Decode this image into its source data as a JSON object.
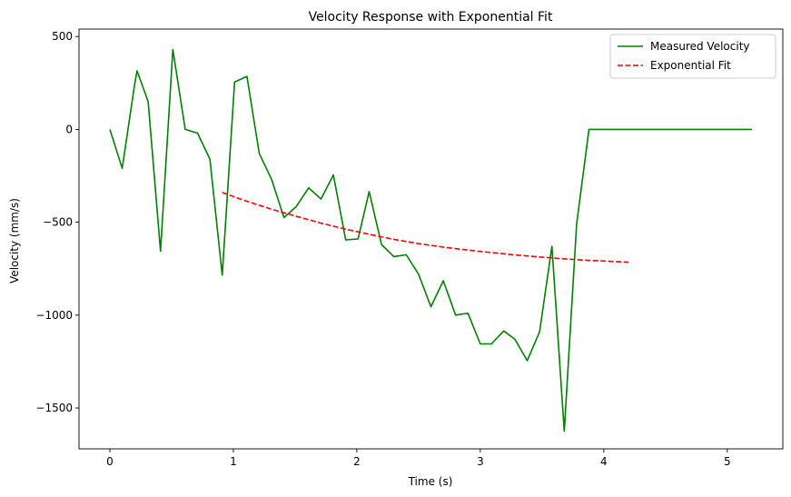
{
  "chart_data": {
    "type": "line",
    "title": "Velocity Response with Exponential Fit",
    "xlabel": "Time (s)",
    "ylabel": "Velocity (mm/s)",
    "xlim": [
      -0.25,
      5.45
    ],
    "ylim": [
      -1720,
      540
    ],
    "xticks": [
      0,
      1,
      2,
      3,
      4,
      5
    ],
    "yticks": [
      500,
      0,
      -500,
      -1000,
      -1500
    ],
    "xtick_labels": [
      "0",
      "1",
      "2",
      "3",
      "4",
      "5"
    ],
    "ytick_labels": [
      "500",
      "0",
      "−500",
      "−1000",
      "−1500"
    ],
    "grid": false,
    "legend_position": "top-right",
    "series": [
      {
        "name": "Measured Velocity",
        "color": "#008000",
        "style": "solid",
        "x": [
          0,
          0.1,
          0.2,
          0.22,
          0.31,
          0.41,
          0.51,
          0.61,
          0.71,
          0.81,
          0.91,
          1.01,
          1.11,
          1.21,
          1.31,
          1.41,
          1.51,
          1.61,
          1.71,
          1.81,
          1.91,
          2.01,
          2.1,
          2.2,
          2.3,
          2.4,
          2.5,
          2.6,
          2.7,
          2.8,
          2.9,
          3.0,
          3.09,
          3.19,
          3.28,
          3.38,
          3.48,
          3.58,
          3.68,
          3.78,
          3.88,
          5.2
        ],
        "y": [
          0,
          -210,
          240,
          315,
          150,
          -655,
          430,
          0,
          -20,
          -160,
          -785,
          255,
          285,
          -130,
          -270,
          -475,
          -415,
          -315,
          -375,
          -245,
          -595,
          -590,
          -335,
          -620,
          -685,
          -675,
          -780,
          -955,
          -815,
          -1000,
          -990,
          -1155,
          -1155,
          -1085,
          -1130,
          -1245,
          -1090,
          -630,
          -1625,
          -510,
          0,
          0
        ]
      },
      {
        "name": "Exponential Fit",
        "color": "#ff0000",
        "style": "dashed",
        "x": [
          0.91,
          1.1,
          1.3,
          1.5,
          1.7,
          1.9,
          2.1,
          2.3,
          2.5,
          2.7,
          2.9,
          3.1,
          3.3,
          3.5,
          3.7,
          3.9,
          4.2
        ],
        "y": [
          -340,
          -385,
          -428,
          -466,
          -503,
          -536,
          -565,
          -592,
          -615,
          -634,
          -650,
          -664,
          -677,
          -688,
          -698,
          -706,
          -715
        ]
      }
    ]
  }
}
